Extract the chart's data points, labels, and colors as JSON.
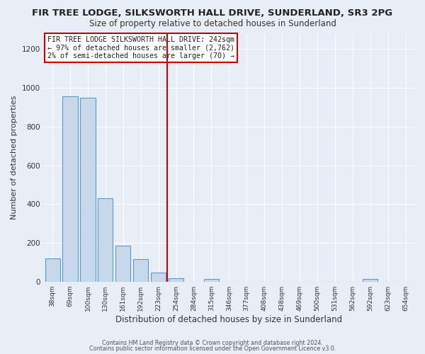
{
  "title": "FIR TREE LODGE, SILKSWORTH HALL DRIVE, SUNDERLAND, SR3 2PG",
  "subtitle": "Size of property relative to detached houses in Sunderland",
  "xlabel": "Distribution of detached houses by size in Sunderland",
  "ylabel": "Number of detached properties",
  "bar_labels": [
    "38sqm",
    "69sqm",
    "100sqm",
    "130sqm",
    "161sqm",
    "192sqm",
    "223sqm",
    "254sqm",
    "284sqm",
    "315sqm",
    "346sqm",
    "377sqm",
    "408sqm",
    "438sqm",
    "469sqm",
    "500sqm",
    "531sqm",
    "562sqm",
    "592sqm",
    "623sqm",
    "654sqm"
  ],
  "bar_values": [
    120,
    955,
    950,
    430,
    185,
    115,
    47,
    18,
    0,
    15,
    0,
    0,
    0,
    0,
    0,
    0,
    0,
    0,
    12,
    0,
    0
  ],
  "bar_color": "#c8d8eb",
  "bar_edge_color": "#5a9cc5",
  "ylim": [
    0,
    1280
  ],
  "yticks": [
    0,
    200,
    400,
    600,
    800,
    1000,
    1200
  ],
  "ref_line_x": 6.5,
  "ref_line_color": "#cc0000",
  "annotation_title": "FIR TREE LODGE SILKSWORTH HALL DRIVE: 242sqm",
  "annotation_line1": "← 97% of detached houses are smaller (2,762)",
  "annotation_line2": "2% of semi-detached houses are larger (70) →",
  "ann_box_color": "#cc0000",
  "footer1": "Contains HM Land Registry data © Crown copyright and database right 2024.",
  "footer2": "Contains public sector information licensed under the Open Government Licence v3.0.",
  "background_color": "#e8eef5",
  "plot_bg_color": "#e8eef5",
  "grid_color": "#ffffff",
  "title_fontsize": 9.5,
  "subtitle_fontsize": 8.5,
  "ylabel_fontsize": 8,
  "xlabel_fontsize": 8.5
}
